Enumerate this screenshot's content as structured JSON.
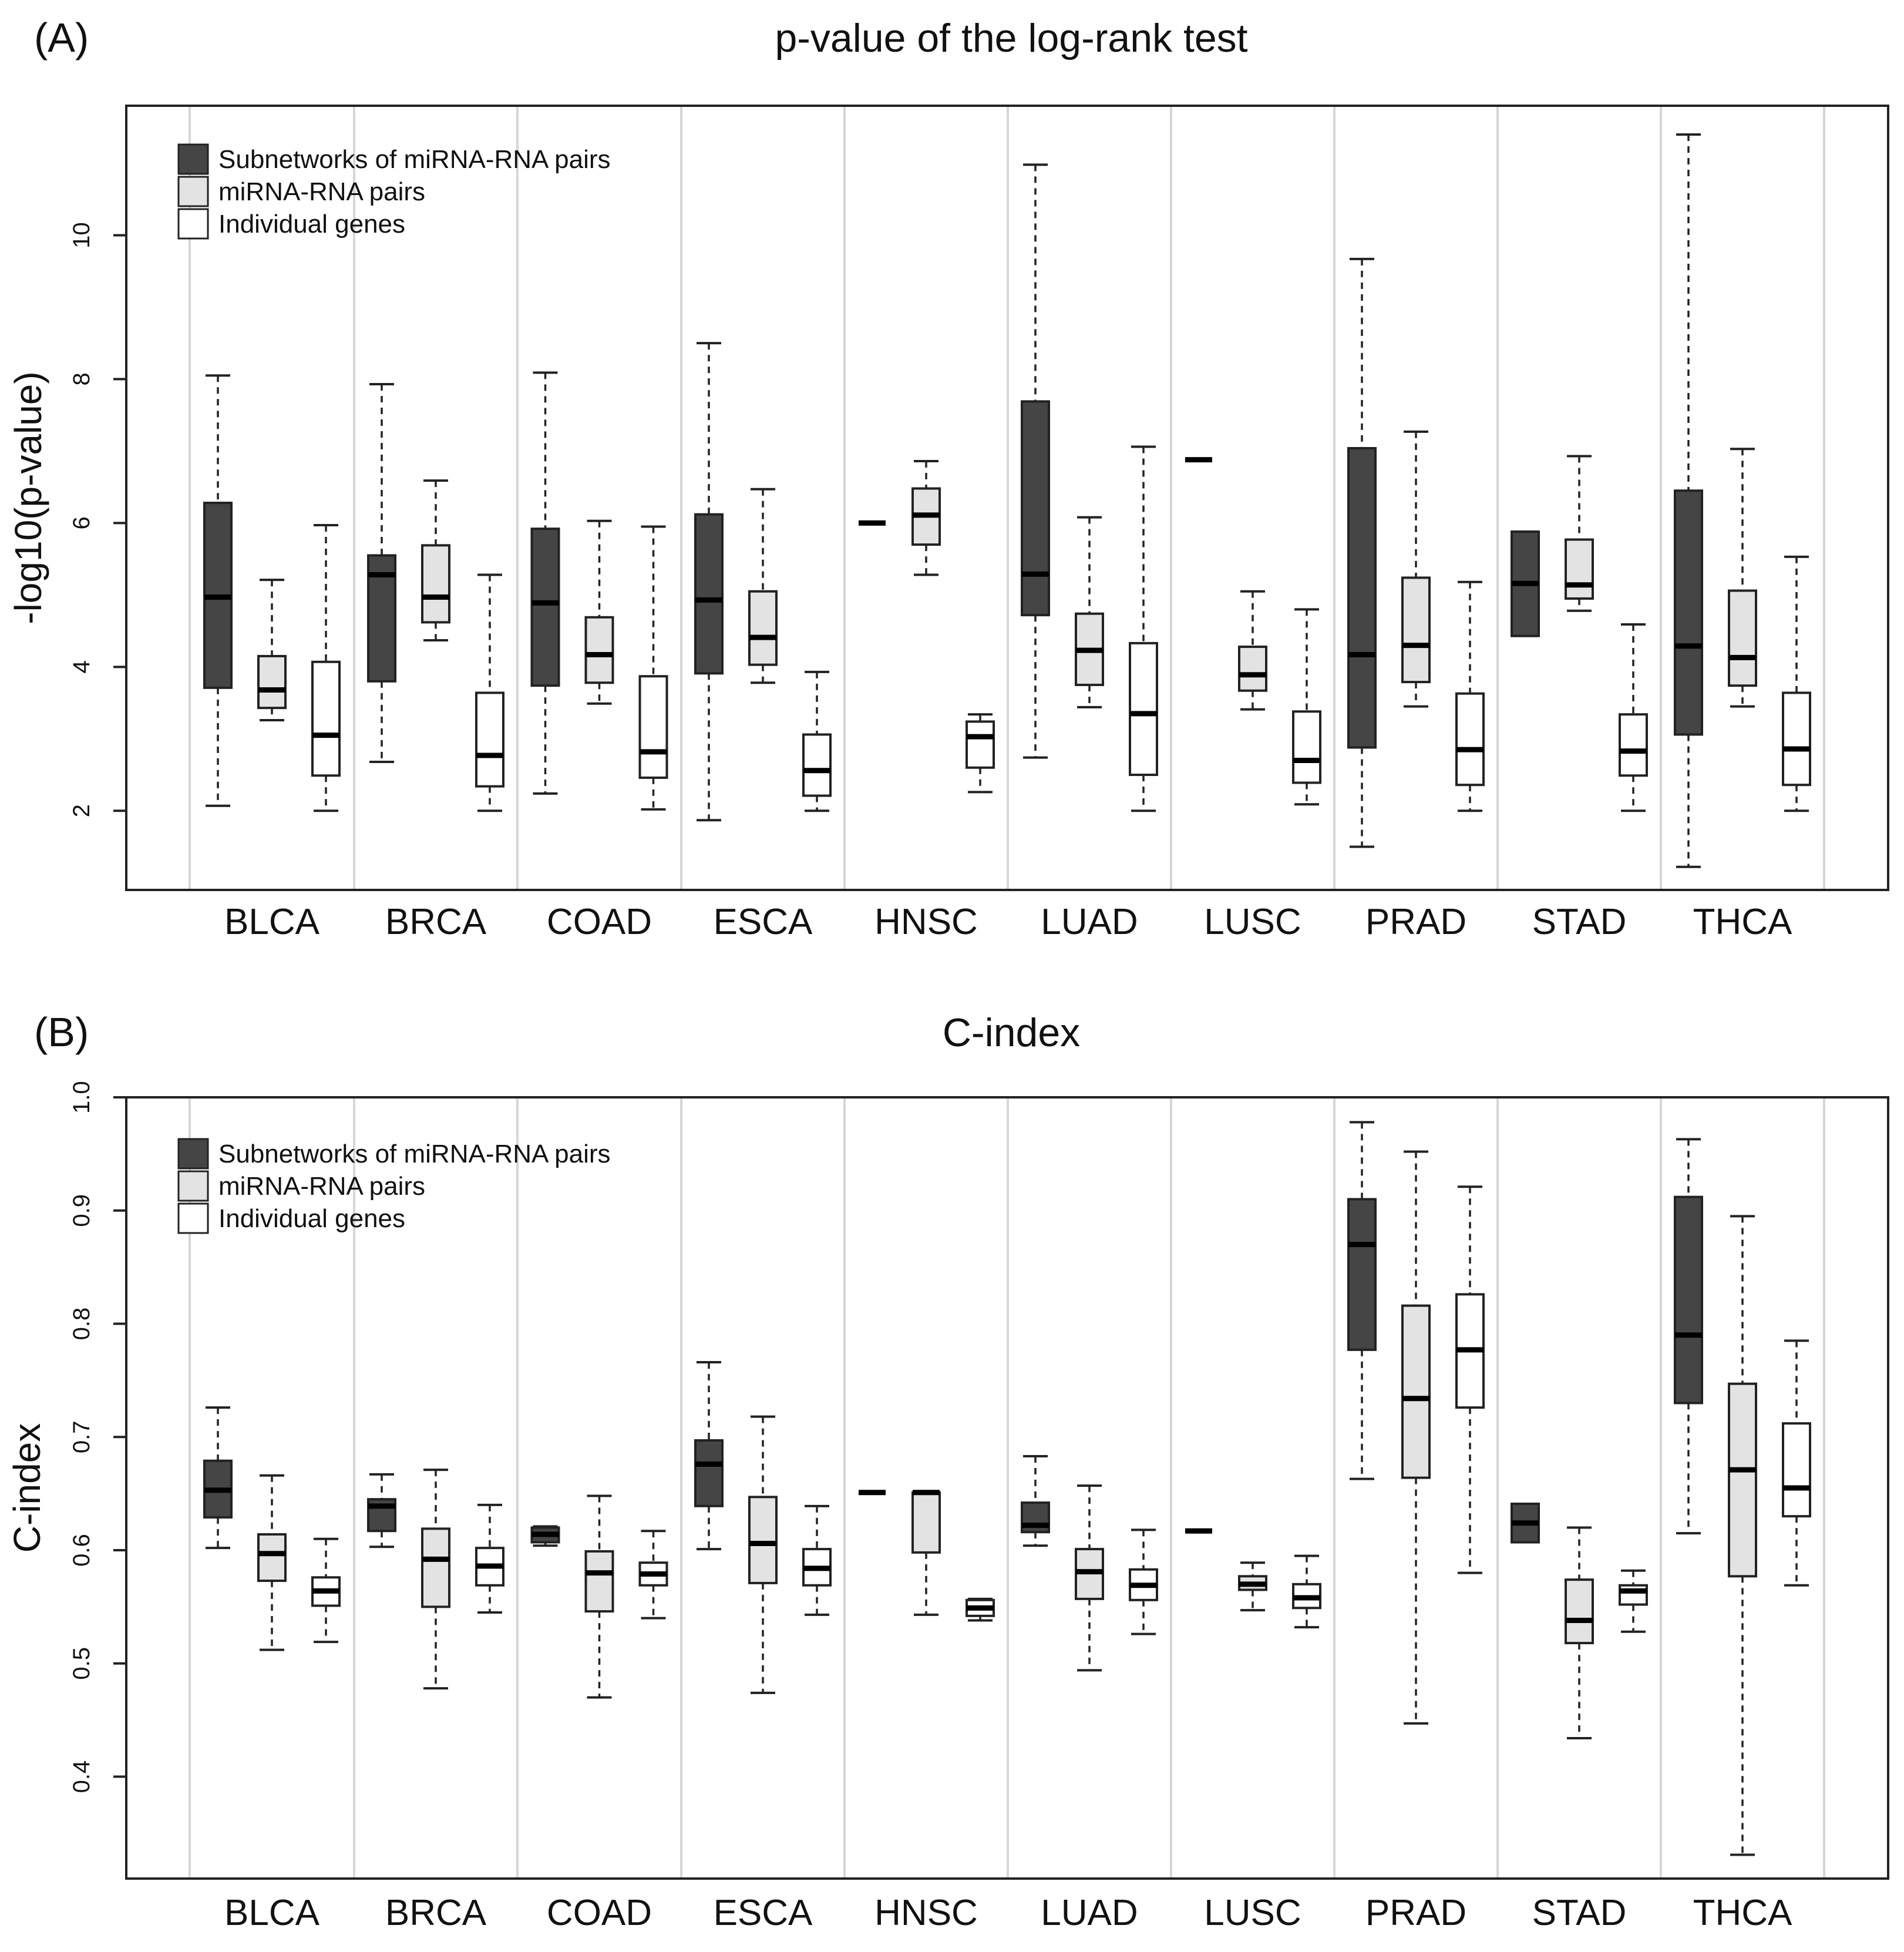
{
  "chart_data": [
    {
      "type": "boxplot",
      "panel_label": "(A)",
      "title": "p-value of the log-rank test",
      "ylabel": "-log10(p-value)",
      "xlabel": "",
      "ylim": [
        0.9,
        11.8
      ],
      "yticks": [
        2,
        4,
        6,
        8,
        10
      ],
      "grid": "vertical separators between cancer types",
      "legend_position": "top-left",
      "categories": [
        "BLCA",
        "BRCA",
        "COAD",
        "ESCA",
        "HNSC",
        "LUAD",
        "LUSC",
        "PRAD",
        "STAD",
        "THCA"
      ],
      "series": [
        {
          "name": "Subnetworks of miRNA-RNA pairs",
          "color": "#454545",
          "boxes": [
            {
              "min": 2.07,
              "q1": 3.71,
              "median": 4.97,
              "q3": 6.28,
              "max": 8.05
            },
            {
              "min": 2.68,
              "q1": 3.8,
              "median": 5.28,
              "q3": 5.55,
              "max": 7.93
            },
            {
              "min": 2.24,
              "q1": 3.74,
              "median": 4.89,
              "q3": 5.92,
              "max": 8.09
            },
            {
              "min": 1.87,
              "q1": 3.91,
              "median": 4.93,
              "q3": 6.12,
              "max": 8.5
            },
            {
              "min": 6.0,
              "q1": 6.0,
              "median": 6.0,
              "q3": 6.0,
              "max": 6.0
            },
            {
              "min": 2.74,
              "q1": 4.72,
              "median": 5.29,
              "q3": 7.69,
              "max": 10.98
            },
            {
              "min": 6.88,
              "q1": 6.88,
              "median": 6.88,
              "q3": 6.88,
              "max": 6.88
            },
            {
              "min": 1.5,
              "q1": 2.88,
              "median": 4.17,
              "q3": 7.04,
              "max": 9.67
            },
            {
              "min": 4.43,
              "q1": 4.43,
              "median": 5.16,
              "q3": 5.88,
              "max": 5.88
            },
            {
              "min": 1.22,
              "q1": 3.06,
              "median": 4.29,
              "q3": 6.45,
              "max": 11.4
            }
          ]
        },
        {
          "name": "miRNA-RNA pairs",
          "color": "#e3e3e3",
          "boxes": [
            {
              "min": 3.26,
              "q1": 3.43,
              "median": 3.68,
              "q3": 4.15,
              "max": 5.21
            },
            {
              "min": 4.37,
              "q1": 4.62,
              "median": 4.97,
              "q3": 5.69,
              "max": 6.59
            },
            {
              "min": 3.49,
              "q1": 3.78,
              "median": 4.17,
              "q3": 4.69,
              "max": 6.03
            },
            {
              "min": 3.78,
              "q1": 4.03,
              "median": 4.41,
              "q3": 5.05,
              "max": 6.47
            },
            {
              "min": 5.28,
              "q1": 5.7,
              "median": 6.11,
              "q3": 6.48,
              "max": 6.86
            },
            {
              "min": 3.44,
              "q1": 3.75,
              "median": 4.23,
              "q3": 4.74,
              "max": 6.08
            },
            {
              "min": 3.41,
              "q1": 3.67,
              "median": 3.89,
              "q3": 4.28,
              "max": 5.05
            },
            {
              "min": 3.45,
              "q1": 3.79,
              "median": 4.3,
              "q3": 5.24,
              "max": 7.27
            },
            {
              "min": 4.78,
              "q1": 4.95,
              "median": 5.14,
              "q3": 5.77,
              "max": 6.93
            },
            {
              "min": 3.45,
              "q1": 3.74,
              "median": 4.13,
              "q3": 5.06,
              "max": 7.03
            }
          ]
        },
        {
          "name": "Individual genes",
          "color": "#ffffff",
          "boxes": [
            {
              "min": 2.0,
              "q1": 2.49,
              "median": 3.05,
              "q3": 4.07,
              "max": 5.97
            },
            {
              "min": 2.0,
              "q1": 2.34,
              "median": 2.77,
              "q3": 3.64,
              "max": 5.28
            },
            {
              "min": 2.02,
              "q1": 2.46,
              "median": 2.82,
              "q3": 3.87,
              "max": 5.95
            },
            {
              "min": 2.0,
              "q1": 2.21,
              "median": 2.56,
              "q3": 3.06,
              "max": 3.93
            },
            {
              "min": 2.26,
              "q1": 2.6,
              "median": 3.03,
              "q3": 3.24,
              "max": 3.34
            },
            {
              "min": 2.0,
              "q1": 2.5,
              "median": 3.35,
              "q3": 4.33,
              "max": 7.06
            },
            {
              "min": 2.09,
              "q1": 2.39,
              "median": 2.7,
              "q3": 3.38,
              "max": 4.8
            },
            {
              "min": 2.0,
              "q1": 2.36,
              "median": 2.85,
              "q3": 3.63,
              "max": 5.18
            },
            {
              "min": 2.0,
              "q1": 2.49,
              "median": 2.83,
              "q3": 3.34,
              "max": 4.59
            },
            {
              "min": 2.0,
              "q1": 2.36,
              "median": 2.86,
              "q3": 3.64,
              "max": 5.53
            }
          ]
        }
      ]
    },
    {
      "type": "boxplot",
      "panel_label": "(B)",
      "title": "C-index",
      "ylabel": "C-index",
      "xlabel": "",
      "ylim": [
        0.31,
        1.0
      ],
      "yticks": [
        0.4,
        0.5,
        0.6,
        0.7,
        0.8,
        0.9,
        1.0
      ],
      "ytick_labels": [
        "0.4",
        "0.5",
        "0.6",
        "0.7",
        "0.8",
        "0.9",
        "1.0"
      ],
      "grid": "vertical separators between cancer types",
      "legend_position": "top-left",
      "categories": [
        "BLCA",
        "BRCA",
        "COAD",
        "ESCA",
        "HNSC",
        "LUAD",
        "LUSC",
        "PRAD",
        "STAD",
        "THCA"
      ],
      "series": [
        {
          "name": "Subnetworks of miRNA-RNA pairs",
          "color": "#454545",
          "boxes": [
            {
              "min": 0.602,
              "q1": 0.629,
              "median": 0.653,
              "q3": 0.679,
              "max": 0.726
            },
            {
              "min": 0.603,
              "q1": 0.617,
              "median": 0.639,
              "q3": 0.645,
              "max": 0.667
            },
            {
              "min": 0.604,
              "q1": 0.607,
              "median": 0.614,
              "q3": 0.62,
              "max": 0.621
            },
            {
              "min": 0.601,
              "q1": 0.639,
              "median": 0.676,
              "q3": 0.697,
              "max": 0.766
            },
            {
              "min": 0.651,
              "q1": 0.651,
              "median": 0.651,
              "q3": 0.651,
              "max": 0.651
            },
            {
              "min": 0.604,
              "q1": 0.616,
              "median": 0.622,
              "q3": 0.642,
              "max": 0.683
            },
            {
              "min": 0.617,
              "q1": 0.617,
              "median": 0.617,
              "q3": 0.617,
              "max": 0.617
            },
            {
              "min": 0.663,
              "q1": 0.777,
              "median": 0.87,
              "q3": 0.91,
              "max": 0.978
            },
            {
              "min": 0.607,
              "q1": 0.607,
              "median": 0.624,
              "q3": 0.641,
              "max": 0.641
            },
            {
              "min": 0.615,
              "q1": 0.73,
              "median": 0.79,
              "q3": 0.912,
              "max": 0.963
            }
          ]
        },
        {
          "name": "miRNA-RNA pairs",
          "color": "#e3e3e3",
          "boxes": [
            {
              "min": 0.512,
              "q1": 0.573,
              "median": 0.597,
              "q3": 0.614,
              "max": 0.666
            },
            {
              "min": 0.478,
              "q1": 0.55,
              "median": 0.592,
              "q3": 0.619,
              "max": 0.671
            },
            {
              "min": 0.47,
              "q1": 0.546,
              "median": 0.58,
              "q3": 0.599,
              "max": 0.648
            },
            {
              "min": 0.474,
              "q1": 0.571,
              "median": 0.606,
              "q3": 0.647,
              "max": 0.718
            },
            {
              "min": 0.543,
              "q1": 0.598,
              "median": 0.651,
              "q3": 0.651,
              "max": 0.651
            },
            {
              "min": 0.494,
              "q1": 0.557,
              "median": 0.581,
              "q3": 0.601,
              "max": 0.657
            },
            {
              "min": 0.547,
              "q1": 0.565,
              "median": 0.57,
              "q3": 0.577,
              "max": 0.589
            },
            {
              "min": 0.447,
              "q1": 0.664,
              "median": 0.734,
              "q3": 0.816,
              "max": 0.952
            },
            {
              "min": 0.434,
              "q1": 0.518,
              "median": 0.538,
              "q3": 0.574,
              "max": 0.62
            },
            {
              "min": 0.331,
              "q1": 0.577,
              "median": 0.671,
              "q3": 0.747,
              "max": 0.895
            }
          ]
        },
        {
          "name": "Individual genes",
          "color": "#ffffff",
          "boxes": [
            {
              "min": 0.519,
              "q1": 0.551,
              "median": 0.564,
              "q3": 0.576,
              "max": 0.61
            },
            {
              "min": 0.545,
              "q1": 0.569,
              "median": 0.586,
              "q3": 0.602,
              "max": 0.64
            },
            {
              "min": 0.54,
              "q1": 0.569,
              "median": 0.579,
              "q3": 0.589,
              "max": 0.617
            },
            {
              "min": 0.543,
              "q1": 0.569,
              "median": 0.584,
              "q3": 0.601,
              "max": 0.639
            },
            {
              "min": 0.538,
              "q1": 0.542,
              "median": 0.549,
              "q3": 0.556,
              "max": 0.557
            },
            {
              "min": 0.526,
              "q1": 0.556,
              "median": 0.569,
              "q3": 0.583,
              "max": 0.618
            },
            {
              "min": 0.532,
              "q1": 0.549,
              "median": 0.558,
              "q3": 0.57,
              "max": 0.595
            },
            {
              "min": 0.58,
              "q1": 0.726,
              "median": 0.777,
              "q3": 0.826,
              "max": 0.921
            },
            {
              "min": 0.528,
              "q1": 0.552,
              "median": 0.564,
              "q3": 0.569,
              "max": 0.582
            },
            {
              "min": 0.569,
              "q1": 0.63,
              "median": 0.655,
              "q3": 0.712,
              "max": 0.785
            }
          ]
        }
      ]
    }
  ]
}
